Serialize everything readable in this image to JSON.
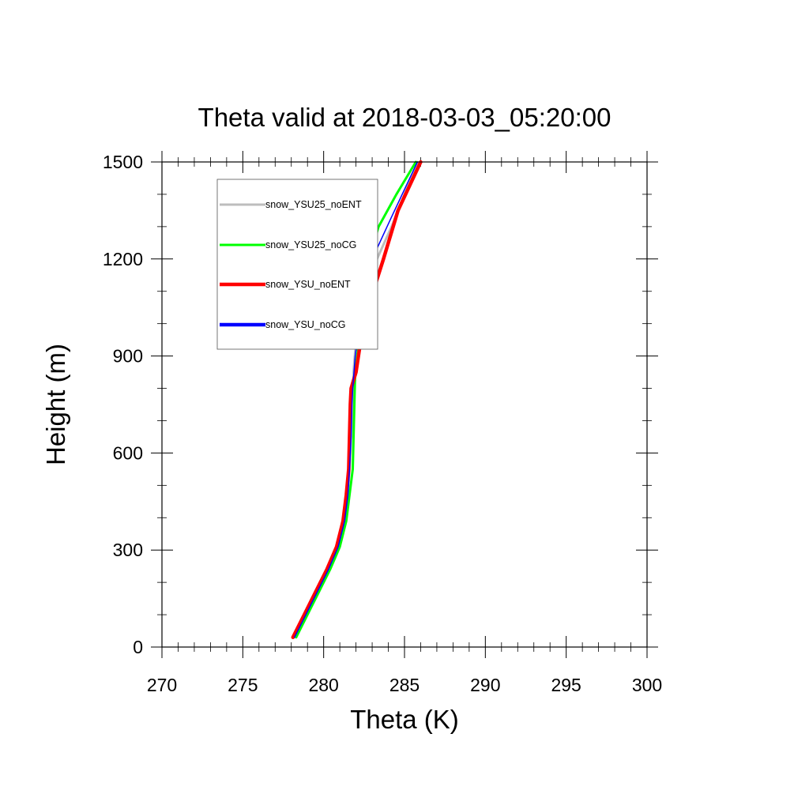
{
  "chart_data": {
    "type": "line",
    "title": "Theta valid at 2018-03-03_05:20:00",
    "xlabel": "Theta (K)",
    "ylabel": "Height (m)",
    "xlim": [
      270,
      300
    ],
    "ylim": [
      0,
      1500
    ],
    "xticks": [
      270,
      275,
      280,
      285,
      290,
      295,
      300
    ],
    "yticks": [
      0,
      300,
      600,
      900,
      1200,
      1500
    ],
    "xtick_labels": [
      "270",
      "275",
      "280",
      "285",
      "290",
      "295",
      "300"
    ],
    "ytick_labels": [
      "0",
      "300",
      "600",
      "900",
      "1200",
      "1500"
    ],
    "grid": false,
    "legend_position": "top-left inside plot",
    "series": [
      {
        "name": "snow_YSU25_noENT",
        "color": "#bdbdbd",
        "points": [
          [
            278.2,
            30
          ],
          [
            278.9,
            100
          ],
          [
            279.6,
            170
          ],
          [
            280.3,
            240
          ],
          [
            280.9,
            310
          ],
          [
            281.3,
            390
          ],
          [
            281.5,
            470
          ],
          [
            281.6,
            550
          ],
          [
            281.7,
            650
          ],
          [
            281.8,
            750
          ],
          [
            281.85,
            850
          ],
          [
            282.0,
            950
          ],
          [
            282.2,
            1050
          ],
          [
            282.5,
            1120
          ],
          [
            283.3,
            1200
          ],
          [
            284.2,
            1300
          ],
          [
            285.0,
            1400
          ],
          [
            285.8,
            1500
          ]
        ]
      },
      {
        "name": "snow_YSU25_noCG",
        "color": "#00ff00",
        "points": [
          [
            278.3,
            30
          ],
          [
            279.0,
            100
          ],
          [
            279.7,
            170
          ],
          [
            280.4,
            240
          ],
          [
            281.0,
            310
          ],
          [
            281.4,
            390
          ],
          [
            281.6,
            470
          ],
          [
            281.8,
            550
          ],
          [
            281.85,
            650
          ],
          [
            281.9,
            750
          ],
          [
            281.95,
            850
          ],
          [
            282.2,
            950
          ],
          [
            282.4,
            1050
          ],
          [
            282.6,
            1120
          ],
          [
            282.8,
            1200
          ],
          [
            283.4,
            1300
          ],
          [
            284.5,
            1400
          ],
          [
            285.7,
            1500
          ]
        ]
      },
      {
        "name": "snow_YSU_noENT",
        "color": "#ff0000",
        "points": [
          [
            278.1,
            30
          ],
          [
            278.8,
            100
          ],
          [
            279.5,
            170
          ],
          [
            280.2,
            240
          ],
          [
            280.8,
            310
          ],
          [
            281.2,
            390
          ],
          [
            281.4,
            470
          ],
          [
            281.55,
            550
          ],
          [
            281.6,
            650
          ],
          [
            281.65,
            750
          ],
          [
            281.7,
            800
          ],
          [
            282.0,
            850
          ],
          [
            282.3,
            950
          ],
          [
            282.6,
            1030
          ],
          [
            283.0,
            1090
          ],
          [
            283.7,
            1200
          ],
          [
            284.6,
            1350
          ],
          [
            286.0,
            1500
          ]
        ]
      },
      {
        "name": "snow_YSU_noCG",
        "color": "#0000ff",
        "points": [
          [
            278.2,
            30
          ],
          [
            278.9,
            100
          ],
          [
            279.6,
            170
          ],
          [
            280.3,
            240
          ],
          [
            280.9,
            310
          ],
          [
            281.3,
            390
          ],
          [
            281.5,
            470
          ],
          [
            281.6,
            550
          ],
          [
            281.7,
            650
          ],
          [
            281.75,
            750
          ],
          [
            281.8,
            800
          ],
          [
            281.95,
            900
          ],
          [
            282.2,
            990
          ],
          [
            282.4,
            1080
          ],
          [
            283.0,
            1200
          ],
          [
            284.2,
            1330
          ],
          [
            285.8,
            1500
          ]
        ]
      }
    ]
  }
}
